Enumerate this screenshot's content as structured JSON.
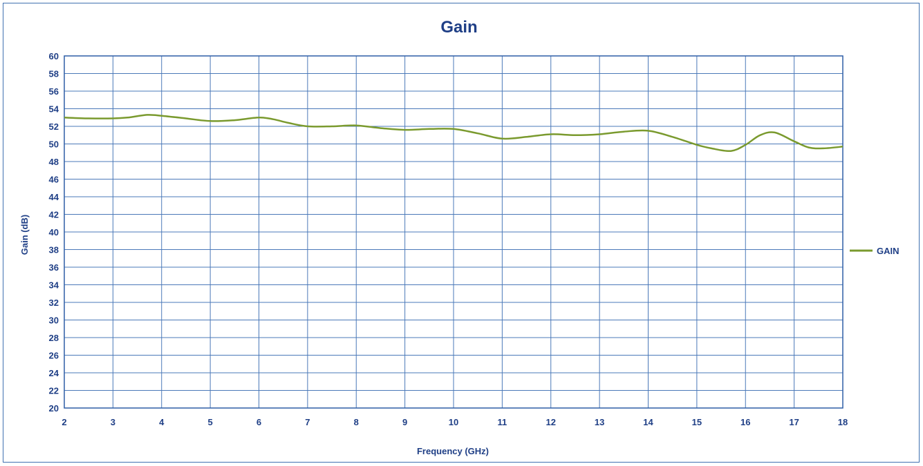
{
  "chart_data": {
    "type": "line",
    "title": "Gain",
    "xlabel": "Frequency (GHz)",
    "ylabel": "Gain (dB)",
    "xlim": [
      2,
      18
    ],
    "ylim": [
      20,
      60
    ],
    "x_ticks": [
      "2",
      "3",
      "4",
      "5",
      "6",
      "7",
      "8",
      "9",
      "10",
      "11",
      "12",
      "13",
      "14",
      "15",
      "16",
      "17",
      "18"
    ],
    "y_ticks": [
      "20",
      "22",
      "24",
      "26",
      "28",
      "30",
      "32",
      "34",
      "36",
      "38",
      "40",
      "42",
      "44",
      "46",
      "48",
      "50",
      "52",
      "54",
      "56",
      "58",
      "60"
    ],
    "grid": true,
    "legend_position": "right",
    "series": [
      {
        "name": "GAIN",
        "color": "#7a9a2e",
        "x": [
          2,
          2.5,
          3,
          3.3,
          3.7,
          4,
          4.5,
          5,
          5.5,
          6,
          6.3,
          6.6,
          7,
          7.5,
          8,
          8.5,
          9,
          9.5,
          10,
          10.5,
          11,
          11.5,
          12,
          12.5,
          13,
          13.5,
          14,
          14.5,
          15,
          15.3,
          15.7,
          16,
          16.3,
          16.6,
          17,
          17.3,
          17.6,
          18
        ],
        "values": [
          53.0,
          52.9,
          52.9,
          53.0,
          53.3,
          53.2,
          52.9,
          52.6,
          52.7,
          53.0,
          52.8,
          52.4,
          52.0,
          52.0,
          52.1,
          51.8,
          51.6,
          51.7,
          51.7,
          51.2,
          50.6,
          50.8,
          51.1,
          51.0,
          51.1,
          51.4,
          51.5,
          50.8,
          49.9,
          49.5,
          49.2,
          49.9,
          51.0,
          51.3,
          50.3,
          49.6,
          49.5,
          49.7
        ]
      }
    ]
  }
}
